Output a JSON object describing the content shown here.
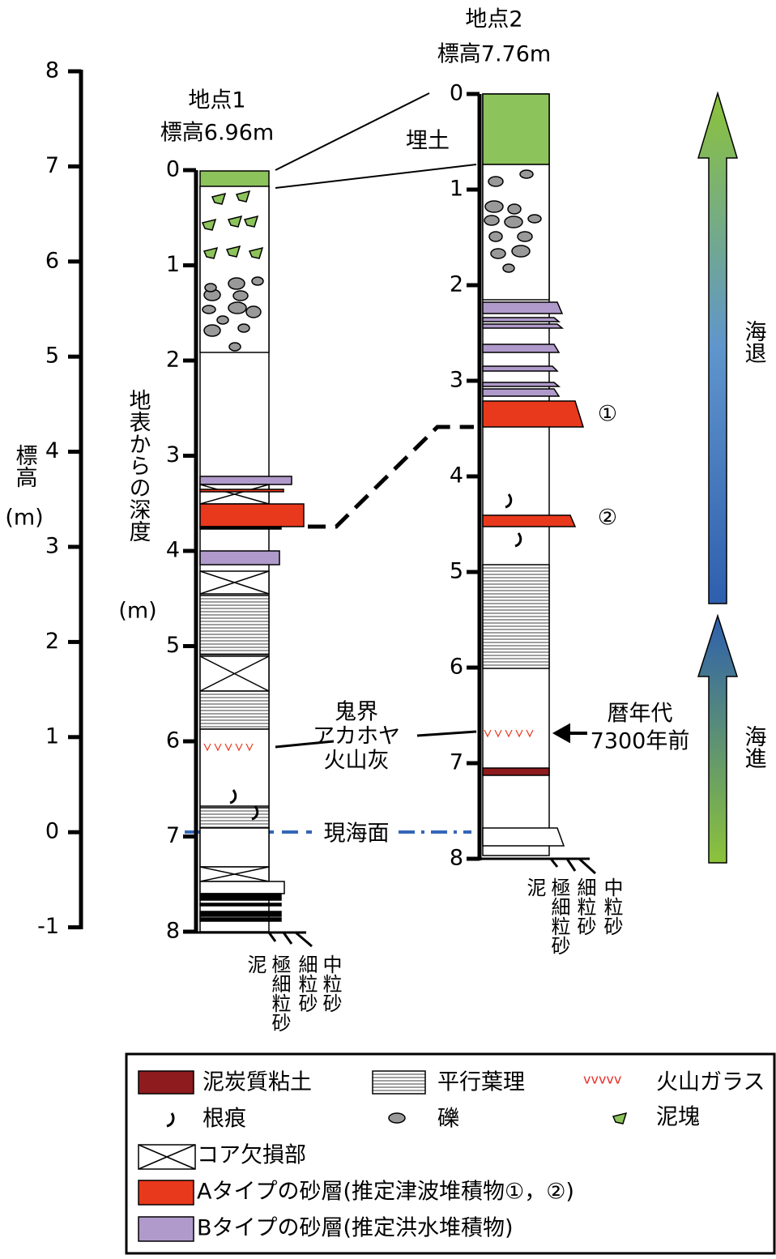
{
  "elevation_axis": {
    "label": "標高",
    "unit": "(m)",
    "ticks": [
      "8",
      "7",
      "6",
      "5",
      "4",
      "3",
      "2",
      "1",
      "0",
      "-1"
    ]
  },
  "site1": {
    "title": "地点1",
    "elevation": "標高6.96m",
    "depth_ticks": [
      "0",
      "1",
      "2",
      "3",
      "4",
      "5",
      "6",
      "7",
      "8"
    ],
    "depth_label": "地表からの深度",
    "depth_unit": "(m)",
    "grain_sizes": [
      "泥",
      "極細粒砂",
      "細粒砂",
      "中粒砂"
    ]
  },
  "site2": {
    "title": "地点2",
    "elevation": "標高7.76m",
    "depth_ticks": [
      "0",
      "1",
      "2",
      "3",
      "4",
      "5",
      "6",
      "7",
      "8"
    ],
    "grain_sizes": [
      "泥",
      "極細粒砂",
      "細粒砂",
      "中粒砂"
    ]
  },
  "annotations": {
    "fill": "埋土",
    "ash": [
      "鬼界",
      "アカホヤ",
      "火山灰"
    ],
    "sea_level": "現海面",
    "age": [
      "暦年代",
      "7300年前"
    ],
    "tsunami1": "①",
    "tsunami2": "②",
    "regression": "海退",
    "transgression": "海進"
  },
  "legend": {
    "peat": "泥炭質粘土",
    "lamination": "平行葉理",
    "glass_symbol": "vvvvv",
    "glass": "火山ガラス",
    "root": "根痕",
    "gravel": "礫",
    "mud_clast": "泥塊",
    "core_loss": "コア欠損部",
    "type_a": "Aタイプの砂層(推定津波堆積物①，②)",
    "type_b": "Bタイプの砂層(推定洪水堆積物)"
  }
}
